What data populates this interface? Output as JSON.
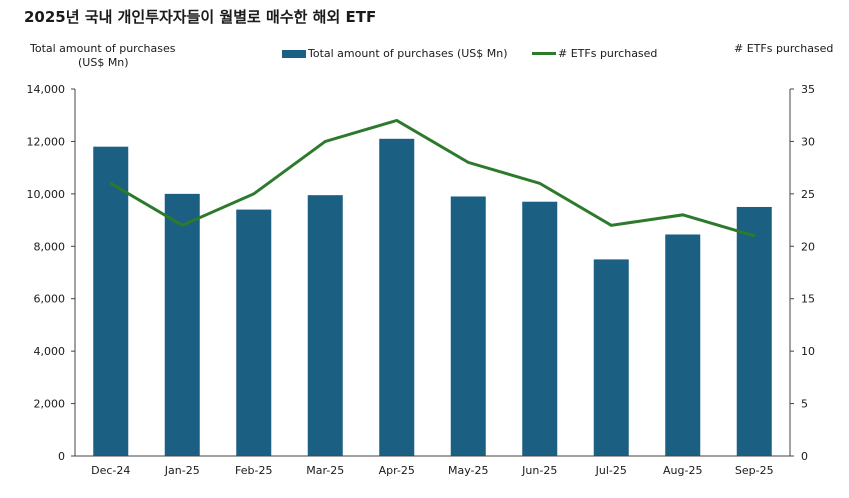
{
  "title": "2025년 국내 개인투자자들이 월별로 매수한 해외 ETF",
  "chart_data": {
    "type": "bar+line",
    "title": "2025년 국내 개인투자자들이 월별로 매수한 해외 ETF",
    "categories": [
      "Dec-24",
      "Jan-25",
      "Feb-25",
      "Mar-25",
      "Apr-25",
      "May-25",
      "Jun-25",
      "Jul-25",
      "Aug-25",
      "Sep-25"
    ],
    "series": [
      {
        "name": "Total amount of purchases (US$ Mn)",
        "type": "bar",
        "axis": "left",
        "color": "#1b5f82",
        "values": [
          11800,
          10000,
          9400,
          9950,
          12100,
          9900,
          9700,
          7500,
          8450,
          9500
        ]
      },
      {
        "name": "# ETFs purchased",
        "type": "line",
        "axis": "right",
        "color": "#2d7a2d",
        "values": [
          26,
          22,
          25,
          30,
          32,
          28,
          26,
          22,
          23,
          21
        ]
      }
    ],
    "left_axis": {
      "title_line1": "Total amount of purchases",
      "title_line2": "(US$ Mn)",
      "range": [
        0,
        14000
      ],
      "ticks": [
        "0",
        "2,000",
        "4,000",
        "6,000",
        "8,000",
        "10,000",
        "12,000",
        "14,000"
      ]
    },
    "right_axis": {
      "title": "# ETFs purchased",
      "range": [
        0,
        35
      ],
      "ticks": [
        "0",
        "5",
        "10",
        "15",
        "20",
        "25",
        "30",
        "35"
      ]
    },
    "legend": {
      "bar_label": "Total amount of purchases (US$ Mn)",
      "line_label": "# ETFs purchased",
      "position": "top-center"
    },
    "grid": false
  }
}
